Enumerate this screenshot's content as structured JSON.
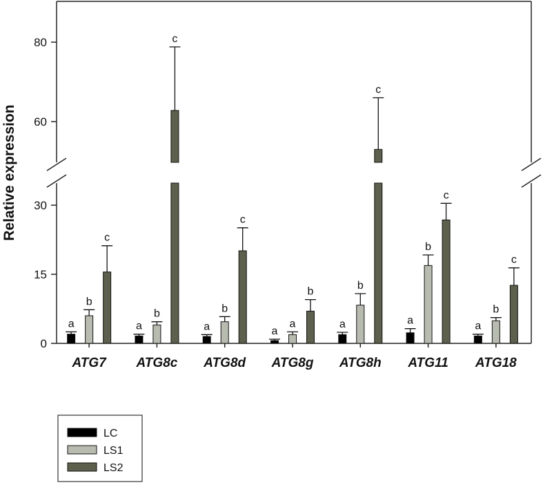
{
  "chart_data": {
    "type": "bar",
    "title": "",
    "xlabel": "",
    "ylabel": "Relative expression",
    "y_axis_break": {
      "lower_range": [
        0,
        35
      ],
      "upper_range": [
        50,
        90
      ]
    },
    "y_ticks": [
      {
        "value": 0,
        "label": "0"
      },
      {
        "value": 15,
        "label": "15"
      },
      {
        "value": 30,
        "label": "30"
      },
      {
        "value": 60,
        "label": "60"
      },
      {
        "value": 80,
        "label": "80"
      }
    ],
    "categories": [
      "ATG7",
      "ATG8c",
      "ATG8d",
      "ATG8g",
      "ATG8h",
      "ATG11",
      "ATG18"
    ],
    "series": [
      {
        "name": "LC",
        "color": "#000000",
        "values": [
          2.0,
          1.6,
          1.5,
          0.6,
          1.9,
          2.3,
          1.6
        ],
        "errors": [
          0.5,
          0.4,
          0.4,
          0.3,
          0.5,
          0.9,
          0.4
        ],
        "letters": [
          "a",
          "a",
          "a",
          "a",
          "a",
          "a",
          "a"
        ]
      },
      {
        "name": "LS1",
        "color": "#b8bcb0",
        "values": [
          6.0,
          4.0,
          4.7,
          1.9,
          8.3,
          16.9,
          4.9
        ],
        "errors": [
          1.3,
          0.7,
          1.1,
          0.6,
          2.5,
          2.3,
          0.7
        ],
        "letters": [
          "b",
          "b",
          "b",
          "a",
          "b",
          "b",
          "b"
        ]
      },
      {
        "name": "LS2",
        "color": "#5d604c",
        "values": [
          15.5,
          62.8,
          20.1,
          7.0,
          53.0,
          26.8,
          12.6
        ],
        "errors": [
          5.7,
          16.0,
          5.0,
          2.5,
          13.0,
          3.6,
          3.8
        ],
        "letters": [
          "c",
          "c",
          "c",
          "b",
          "c",
          "c",
          "c"
        ]
      }
    ],
    "legend": {
      "position": "bottom-left",
      "entries": [
        "LC",
        "LS1",
        "LS2"
      ]
    }
  }
}
